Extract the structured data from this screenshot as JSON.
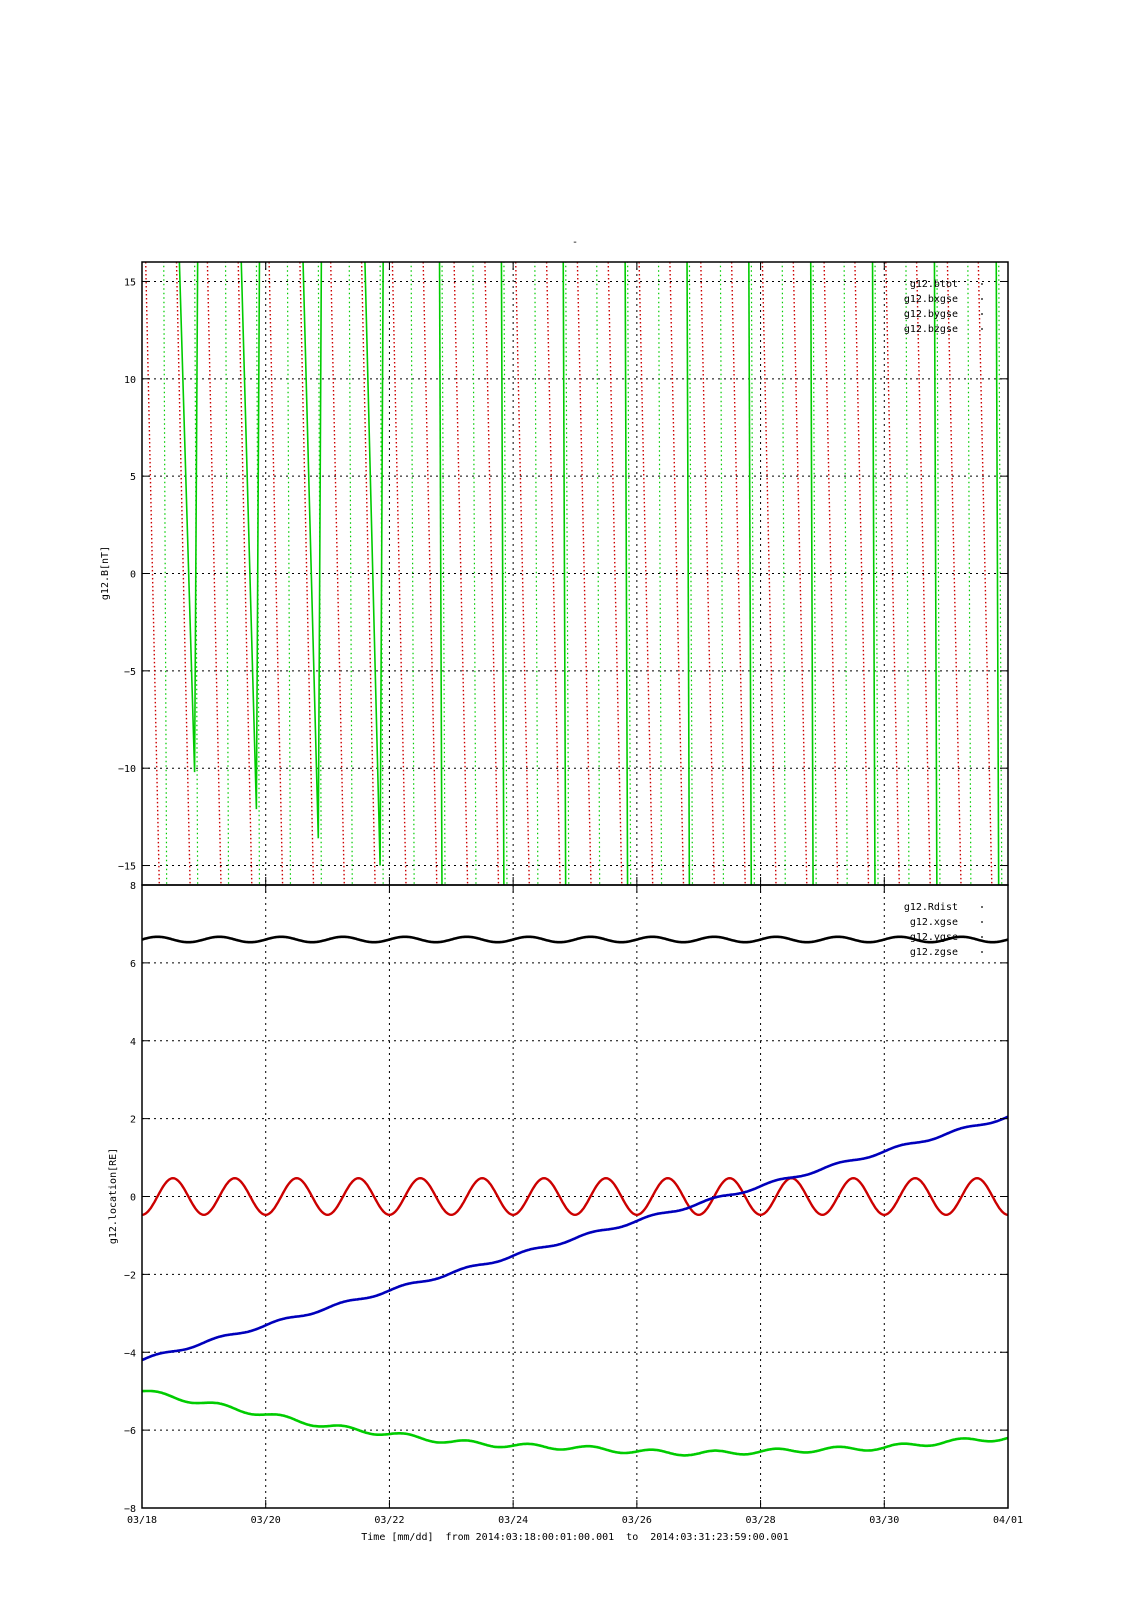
{
  "page_title": "-",
  "footer_caption": "Time [mm/dd]  from 2014:03:18:00:01:00.001  to  2014:03:31:23:59:00.001",
  "colors": {
    "red": "#cc0000",
    "green": "#00cc00",
    "blue": "#0000bb",
    "black": "#000000"
  },
  "chart_data": [
    {
      "type": "line",
      "title": "",
      "ylabel": "g12.B[nT]",
      "xlabel": "",
      "ylim": [
        -16,
        16
      ],
      "yticks": [
        -15,
        -10,
        -5,
        0,
        5,
        10,
        15
      ],
      "xlim": [
        0,
        14
      ],
      "legend": "top-right",
      "grid": true,
      "legend_entries": [
        "g12.btot",
        "g12.bxgse",
        "g12.bygse",
        "g12.bzgse"
      ],
      "series": [
        {
          "name": "g12.btot",
          "color": "#cc0000",
          "style": "dotted",
          "values": []
        },
        {
          "name": "g12.bxgse",
          "color": "#cc0000",
          "style": "dotted",
          "sweep_period_days": 0.997,
          "sweep_range": [
            -16,
            16
          ],
          "descending": true
        },
        {
          "name": "g12.bygse",
          "color": "#00cc00",
          "style": "solid",
          "minima": [
            {
              "x": 0.85,
              "y": -10.2
            },
            {
              "x": 1.85,
              "y": -12.1
            },
            {
              "x": 2.85,
              "y": -13.6
            },
            {
              "x": 3.85,
              "y": -15.0
            }
          ]
        },
        {
          "name": "g12.bzgse",
          "color": "#00cc00",
          "style": "dotted",
          "values": []
        }
      ]
    },
    {
      "type": "line",
      "title": "",
      "ylabel": "g12.location[RE]",
      "xlabel": "Time [mm/dd]",
      "ylim": [
        -8,
        8
      ],
      "yticks": [
        -8,
        -6,
        -4,
        -2,
        0,
        2,
        4,
        6,
        8
      ],
      "xlim": [
        0,
        14
      ],
      "xtick_positions": [
        0,
        2,
        4,
        6,
        8,
        10,
        12,
        14
      ],
      "xtick_labels": [
        "03/18",
        "03/20",
        "03/22",
        "03/24",
        "03/26",
        "03/28",
        "03/30",
        "04/01"
      ],
      "legend": "top-right",
      "grid": true,
      "legend_entries": [
        "g12.Rdist",
        "g12.xgse",
        "g12.ygse",
        "g12.zgse"
      ],
      "series": [
        {
          "name": "g12.Rdist",
          "color": "#000000",
          "mean": 6.6,
          "amplitude": 0.07,
          "period_days": 1.0
        },
        {
          "name": "g12.xgse",
          "color": "#cc0000",
          "mean": 0,
          "amplitude": 0.47,
          "period_days": 1.0,
          "start": -0.47
        },
        {
          "name": "g12.ygse",
          "color": "#0000bb",
          "start": -4.2,
          "end": 2.05
        },
        {
          "name": "g12.zgse",
          "color": "#00cc00",
          "points": [
            [
              0,
              -5.0
            ],
            [
              1,
              -5.3
            ],
            [
              2,
              -5.6
            ],
            [
              3,
              -5.9
            ],
            [
              4,
              -6.1
            ],
            [
              5,
              -6.3
            ],
            [
              6,
              -6.4
            ],
            [
              7,
              -6.45
            ],
            [
              8,
              -6.55
            ],
            [
              9,
              -6.6
            ],
            [
              10,
              -6.55
            ],
            [
              11,
              -6.5
            ],
            [
              12,
              -6.45
            ],
            [
              13,
              -6.3
            ],
            [
              14,
              -6.2
            ]
          ],
          "wiggle": 0.06,
          "period_days": 1.0
        }
      ]
    }
  ]
}
